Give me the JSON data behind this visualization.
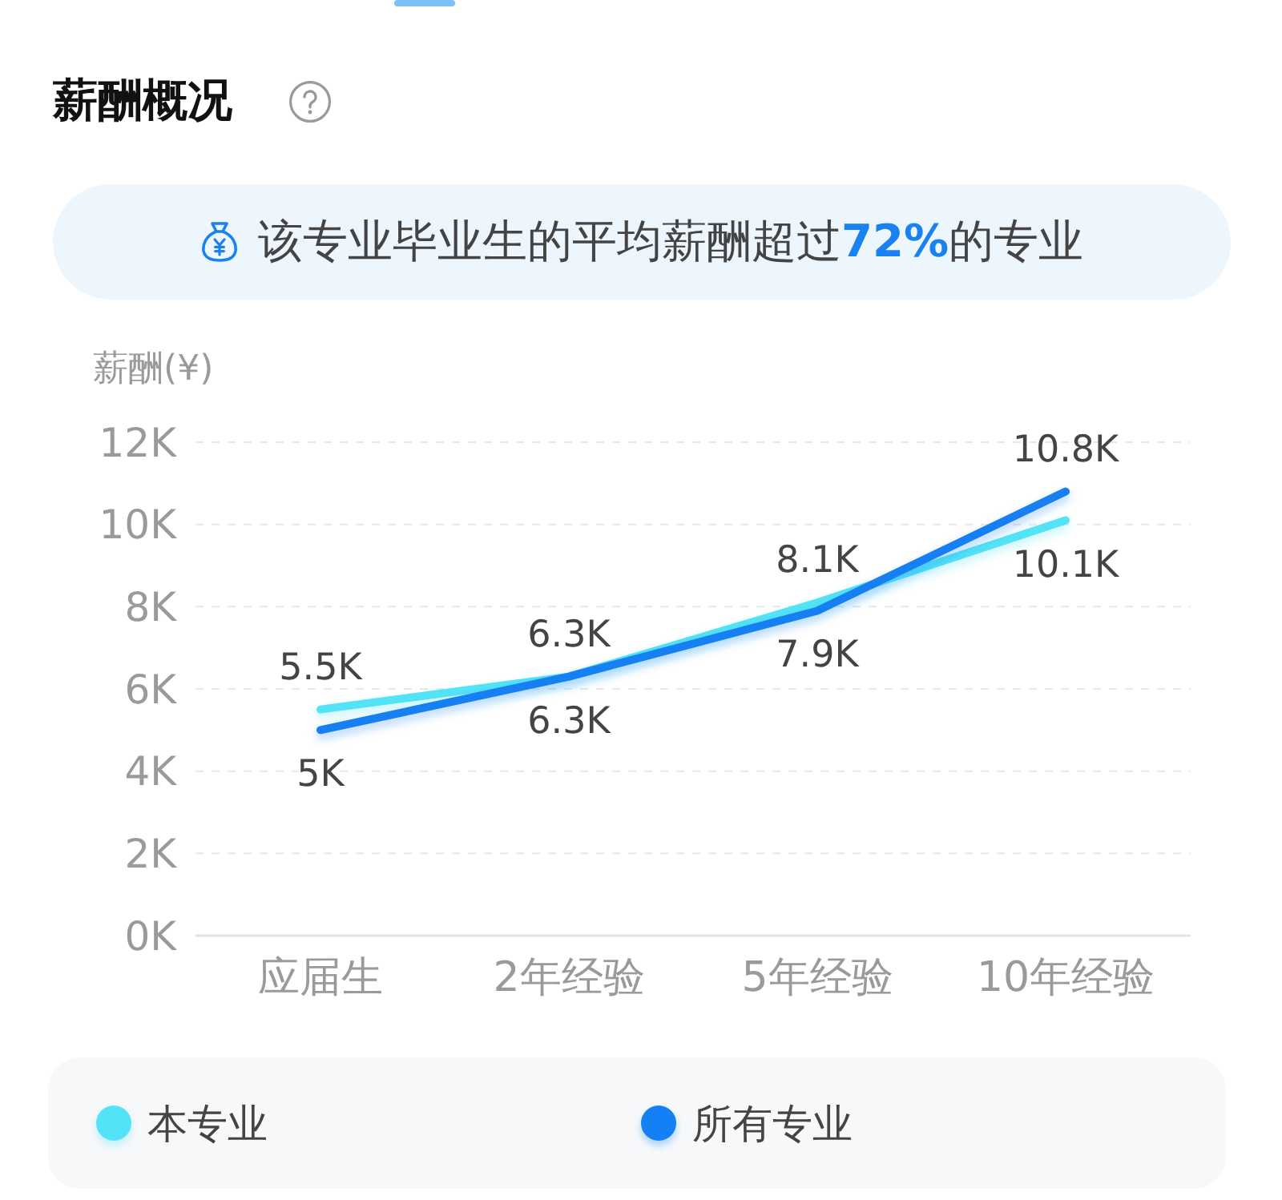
{
  "chart_data": {
    "type": "line",
    "title": "薪酬概况",
    "subtitle": "该专业毕业生的平均薪酬超过72%的专业",
    "ylabel": "薪酬(¥)",
    "categories": [
      "应届生",
      "2年经验",
      "5年经验",
      "10年经验"
    ],
    "series": [
      {
        "name": "本专业",
        "color": "#52e3f6",
        "values": [
          5500,
          6300,
          8100,
          10100
        ],
        "value_labels": [
          "5.5K",
          "6.3K",
          "8.1K",
          "10.1K"
        ]
      },
      {
        "name": "所有专业",
        "color": "#1480f3",
        "values": [
          5000,
          6300,
          7900,
          10800
        ],
        "value_labels": [
          "5K",
          "6.3K",
          "7.9K",
          "10.8K"
        ]
      }
    ],
    "ylim": [
      0,
      12000
    ],
    "yticks": [
      {
        "value": 0,
        "label": "0K"
      },
      {
        "value": 2000,
        "label": "2K"
      },
      {
        "value": 4000,
        "label": "4K"
      },
      {
        "value": 6000,
        "label": "6K"
      },
      {
        "value": 8000,
        "label": "8K"
      },
      {
        "value": 10000,
        "label": "10K"
      },
      {
        "value": 12000,
        "label": "12K"
      }
    ],
    "grid": "y",
    "legend": "bottom",
    "marker": "none",
    "line_style": "solid"
  }
}
